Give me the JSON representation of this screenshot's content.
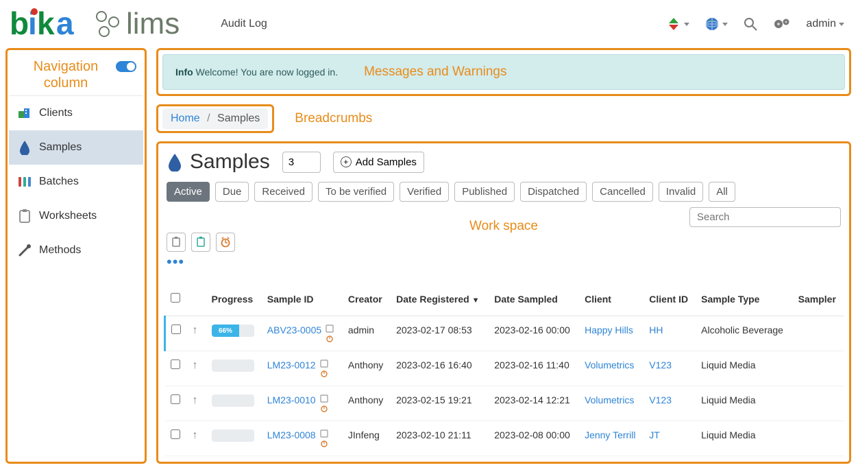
{
  "colors": {
    "accent_orange": "#e88c1a",
    "link_blue": "#2e84d6",
    "pill_active_bg": "#6c757d",
    "info_bg": "#d3ecec",
    "progress_fill": "#3bb4e8"
  },
  "topbar": {
    "audit_log": "Audit Log",
    "user": "admin"
  },
  "sidebar": {
    "heading": "Navigation column",
    "items": [
      {
        "label": "Clients",
        "icon": "clients"
      },
      {
        "label": "Samples",
        "icon": "drop",
        "active": true
      },
      {
        "label": "Batches",
        "icon": "batches"
      },
      {
        "label": "Worksheets",
        "icon": "clipboard"
      },
      {
        "label": "Methods",
        "icon": "wand"
      }
    ]
  },
  "message": {
    "tag": "Info",
    "text": "Welcome! You are now logged in.",
    "annotation": "Messages and Warnings"
  },
  "breadcrumbs": {
    "home": "Home",
    "current": "Samples",
    "annotation": "Breadcrumbs"
  },
  "workspace": {
    "annotation": "Work space",
    "title": "Samples",
    "count_value": "3",
    "add_label": "Add Samples",
    "filters": [
      "Active",
      "Due",
      "Received",
      "To be verified",
      "Verified",
      "Published",
      "Dispatched",
      "Cancelled",
      "Invalid",
      "All"
    ],
    "active_filter": "Active",
    "search_placeholder": "Search",
    "columns": {
      "progress": "Progress",
      "sample_id": "Sample ID",
      "creator": "Creator",
      "date_reg": "Date Registered",
      "sort_ind": "▼",
      "date_sampled": "Date Sampled",
      "client": "Client",
      "client_id": "Client ID",
      "sample_type": "Sample Type",
      "sampler": "Sampler"
    },
    "rows": [
      {
        "highlight": true,
        "progress_pct": 66,
        "progress_label": "66%",
        "sample_id": "ABV23-0005",
        "creator": "admin",
        "date_reg": "2023-02-17 08:53",
        "date_sampled": "2023-02-16 00:00",
        "client": "Happy Hills",
        "client_id": "HH",
        "sample_type": "Alcoholic Beverage",
        "sampler": ""
      },
      {
        "progress_pct": 0,
        "progress_label": "",
        "sample_id": "LM23-0012",
        "creator": "Anthony",
        "date_reg": "2023-02-16 16:40",
        "date_sampled": "2023-02-16 11:40",
        "client": "Volumetrics",
        "client_id": "V123",
        "sample_type": "Liquid Media",
        "sampler": ""
      },
      {
        "progress_pct": 0,
        "progress_label": "",
        "sample_id": "LM23-0010",
        "creator": "Anthony",
        "date_reg": "2023-02-15 19:21",
        "date_sampled": "2023-02-14 12:21",
        "client": "Volumetrics",
        "client_id": "V123",
        "sample_type": "Liquid Media",
        "sampler": ""
      },
      {
        "progress_pct": 0,
        "progress_label": "",
        "sample_id": "LM23-0008",
        "creator": "JInfeng",
        "date_reg": "2023-02-10 21:11",
        "date_sampled": "2023-02-08 00:00",
        "client": "Jenny Terrill",
        "client_id": "JT",
        "sample_type": "Liquid Media",
        "sampler": ""
      }
    ]
  }
}
